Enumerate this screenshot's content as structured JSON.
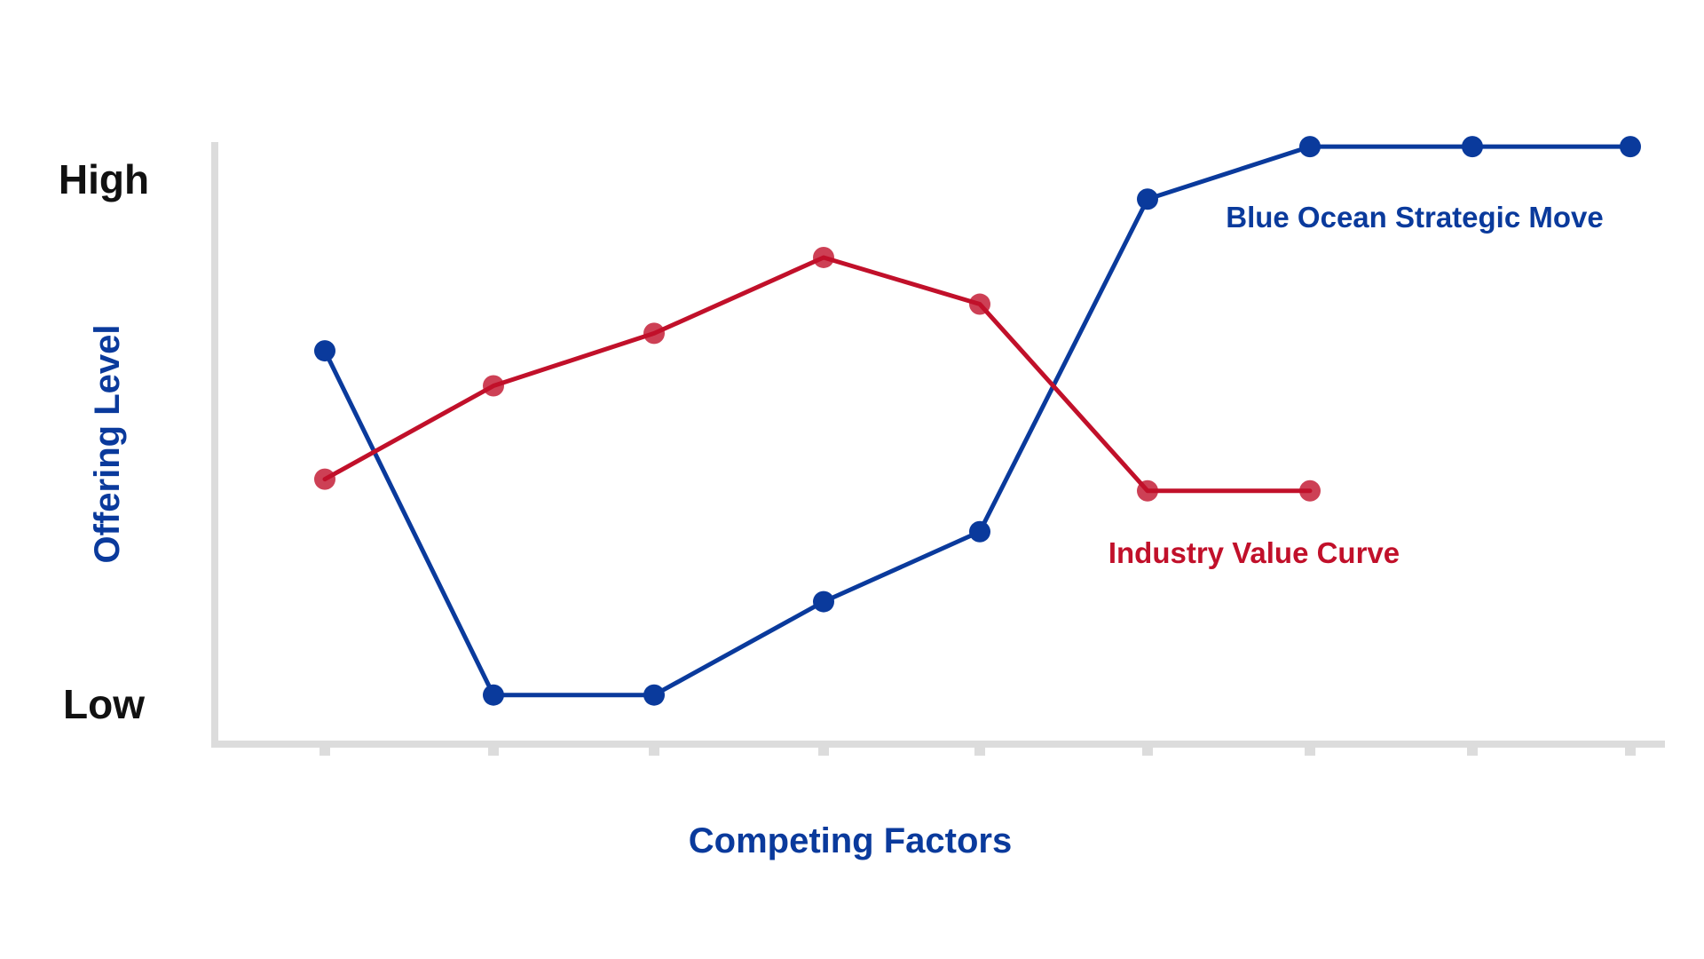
{
  "chart_data": {
    "type": "line",
    "xlabel": "Competing Factors",
    "ylabel": "Offering Level",
    "y_tick_labels": {
      "high": "High",
      "low": "Low"
    },
    "ylim": [
      0,
      1
    ],
    "x_tick_count": 9,
    "grid": false,
    "series": [
      {
        "name": "Blue Ocean Strategic Move",
        "color": "#0a3a9c",
        "points": [
          {
            "x": 0,
            "y": 0.63
          },
          {
            "x": 1,
            "y": 0.04
          },
          {
            "x": 2,
            "y": 0.04
          },
          {
            "x": 3,
            "y": 0.2
          },
          {
            "x": 4,
            "y": 0.32
          },
          {
            "x": 5,
            "y": 0.89
          },
          {
            "x": 6,
            "y": 0.98
          },
          {
            "x": 7,
            "y": 0.98
          },
          {
            "x": 8,
            "y": 0.98
          }
        ]
      },
      {
        "name": "Industry Value Curve",
        "color": "#c1102a",
        "points": [
          {
            "x": 0,
            "y": 0.41
          },
          {
            "x": 1,
            "y": 0.57
          },
          {
            "x": 2,
            "y": 0.66
          },
          {
            "x": 3,
            "y": 0.79
          },
          {
            "x": 4,
            "y": 0.71
          },
          {
            "x": 5,
            "y": 0.39
          },
          {
            "x": 6,
            "y": 0.39
          }
        ]
      }
    ]
  }
}
